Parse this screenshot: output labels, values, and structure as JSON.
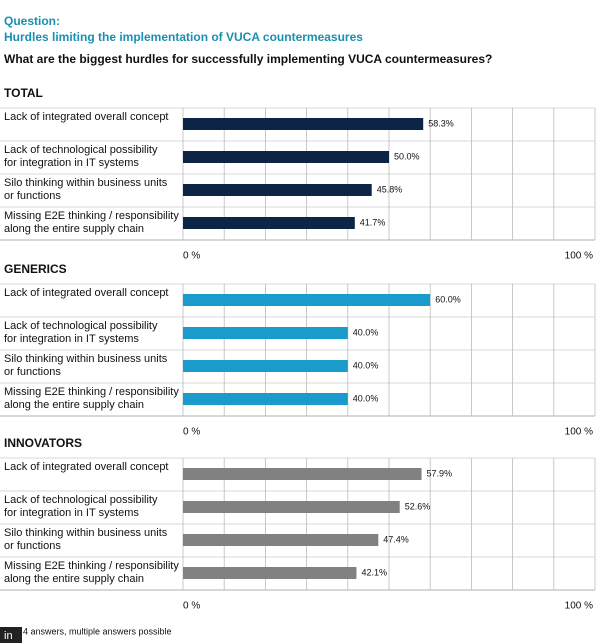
{
  "header": {
    "label": "Question:",
    "title": "Hurdles limiting the implementation of VUCA countermeasures",
    "question": "What are the biggest hurdles for successfully implementing VUCA countermeasures?"
  },
  "chart_data": [
    {
      "type": "hbar",
      "title": "TOTAL",
      "color": "#0e2447",
      "categories": [
        "Lack of integrated overall concept",
        "Lack of technological possibility\nfor integration in IT systems",
        "Silo thinking within business units\nor functions",
        "Missing E2E thinking / responsibility\nalong the entire supply chain"
      ],
      "values": [
        58.3,
        50.0,
        45.8,
        41.7
      ],
      "value_labels": [
        "58.3%",
        "50.0%",
        "45.8%",
        "41.7%"
      ],
      "xlim": [
        0,
        100
      ],
      "grid": true,
      "xticks": [
        {
          "value": 0,
          "label": "0 %"
        },
        {
          "value": 10,
          "label": null
        },
        {
          "value": 20,
          "label": null
        },
        {
          "value": 30,
          "label": null
        },
        {
          "value": 40,
          "label": null
        },
        {
          "value": 50,
          "label": null
        },
        {
          "value": 60,
          "label": null
        },
        {
          "value": 70,
          "label": null
        },
        {
          "value": 80,
          "label": null
        },
        {
          "value": 90,
          "label": null
        },
        {
          "value": 100,
          "label": "100 %"
        }
      ]
    },
    {
      "type": "hbar",
      "title": "GENERICS",
      "color": "#1a9bcb",
      "categories": [
        "Lack of integrated overall concept",
        "Lack of technological possibility\nfor integration in IT systems",
        "Silo thinking within business units\nor functions",
        "Missing E2E thinking / responsibility\nalong the entire supply chain"
      ],
      "values": [
        60.0,
        40.0,
        40.0,
        40.0
      ],
      "value_labels": [
        "60.0%",
        "40.0%",
        "40.0%",
        "40.0%"
      ],
      "xlim": [
        0,
        100
      ],
      "grid": true,
      "xticks": [
        {
          "value": 0,
          "label": "0 %"
        },
        {
          "value": 10,
          "label": null
        },
        {
          "value": 20,
          "label": null
        },
        {
          "value": 30,
          "label": null
        },
        {
          "value": 40,
          "label": null
        },
        {
          "value": 50,
          "label": null
        },
        {
          "value": 60,
          "label": null
        },
        {
          "value": 70,
          "label": null
        },
        {
          "value": 80,
          "label": null
        },
        {
          "value": 90,
          "label": null
        },
        {
          "value": 100,
          "label": "100 %"
        }
      ]
    },
    {
      "type": "hbar",
      "title": "INNOVATORS",
      "color": "#818181",
      "categories": [
        "Lack of integrated overall concept",
        "Lack of technological possibility\nfor integration in IT systems",
        "Silo thinking within business units\nor functions",
        "Missing E2E thinking / responsibility\nalong the entire supply chain"
      ],
      "values": [
        57.9,
        52.6,
        47.4,
        42.1
      ],
      "value_labels": [
        "57.9%",
        "52.6%",
        "47.4%",
        "42.1%"
      ],
      "xlim": [
        0,
        100
      ],
      "grid": true,
      "xticks": [
        {
          "value": 0,
          "label": "0 %"
        },
        {
          "value": 10,
          "label": null
        },
        {
          "value": 20,
          "label": null
        },
        {
          "value": 30,
          "label": null
        },
        {
          "value": 40,
          "label": null
        },
        {
          "value": 50,
          "label": null
        },
        {
          "value": 60,
          "label": null
        },
        {
          "value": 70,
          "label": null
        },
        {
          "value": 80,
          "label": null
        },
        {
          "value": 90,
          "label": null
        },
        {
          "value": 100,
          "label": "100 %"
        }
      ]
    }
  ],
  "footer": {
    "icon": "in",
    "note": "4 answers, multiple answers possible"
  }
}
